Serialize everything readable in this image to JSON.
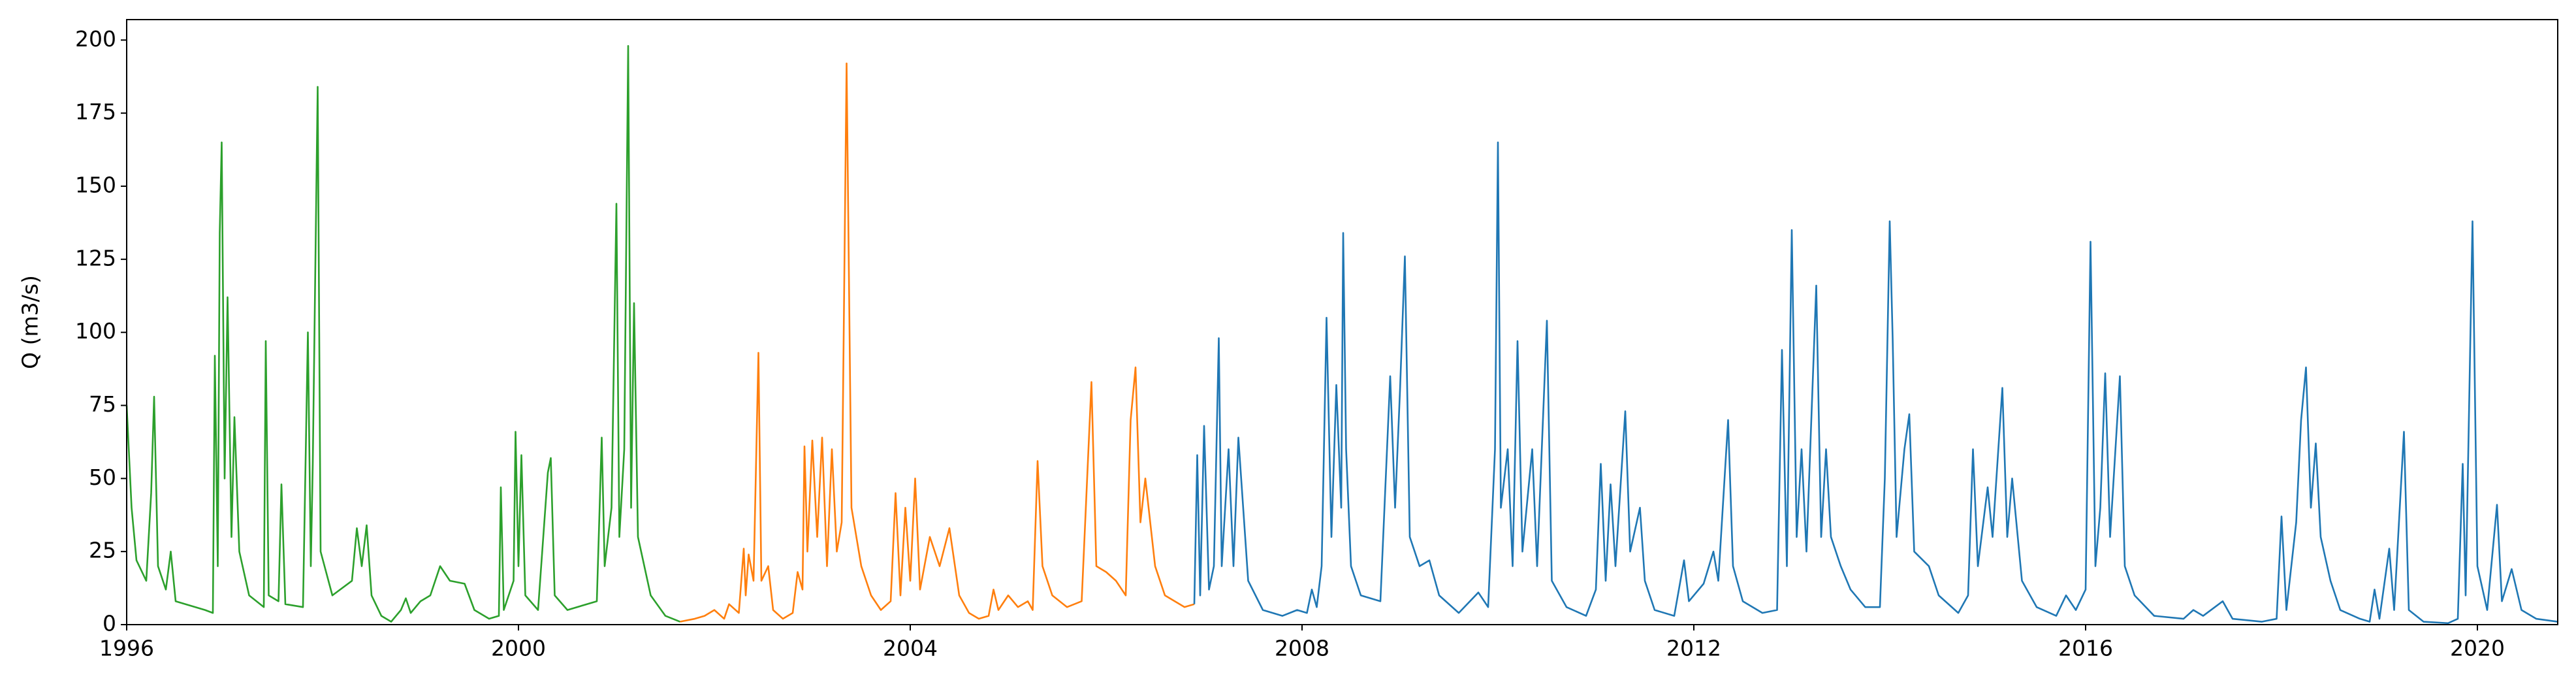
{
  "chart_data": {
    "type": "line",
    "y_label": "Q (m3/s)",
    "xlim": [
      1996,
      2020.82
    ],
    "xticks": [
      1996,
      2000,
      2004,
      2008,
      2012,
      2016,
      2020
    ],
    "ylim": [
      0,
      207
    ],
    "yticks": [
      0,
      25,
      50,
      75,
      100,
      125,
      150,
      175,
      200
    ],
    "grid": false,
    "series": [
      {
        "color": "#2ca02c",
        "x": [
          1996.0,
          1996.05,
          1996.1,
          1996.2,
          1996.25,
          1996.28,
          1996.32,
          1996.4,
          1996.45,
          1996.5,
          1996.8,
          1996.88,
          1996.9,
          1996.93,
          1996.95,
          1996.97,
          1997.0,
          1997.03,
          1997.07,
          1997.1,
          1997.15,
          1997.25,
          1997.4,
          1997.42,
          1997.45,
          1997.55,
          1997.58,
          1997.62,
          1997.8,
          1997.85,
          1997.88,
          1997.9,
          1997.95,
          1997.98,
          1998.1,
          1998.3,
          1998.35,
          1998.4,
          1998.45,
          1998.5,
          1998.6,
          1998.7,
          1998.8,
          1998.85,
          1998.9,
          1999.0,
          1999.1,
          1999.2,
          1999.3,
          1999.45,
          1999.55,
          1999.7,
          1999.8,
          1999.82,
          1999.85,
          1999.95,
          1999.97,
          2000.0,
          2000.03,
          2000.07,
          2000.2,
          2000.3,
          2000.33,
          2000.37,
          2000.5,
          2000.8,
          2000.85,
          2000.88,
          2000.95,
          2001.0,
          2001.03,
          2001.08,
          2001.12,
          2001.15,
          2001.18,
          2001.22,
          2001.35,
          2001.5,
          2001.65
        ],
        "values": [
          75,
          40,
          22,
          15,
          45,
          78,
          20,
          12,
          25,
          8,
          5,
          4,
          92,
          20,
          134,
          165,
          50,
          112,
          30,
          71,
          25,
          10,
          6,
          97,
          10,
          8,
          48,
          7,
          6,
          100,
          20,
          55,
          184,
          25,
          10,
          15,
          33,
          20,
          34,
          10,
          3,
          1,
          5,
          9,
          4,
          8,
          10,
          20,
          15,
          14,
          5,
          2,
          3,
          47,
          5,
          15,
          66,
          20,
          58,
          10,
          5,
          52,
          57,
          10,
          5,
          8,
          64,
          20,
          40,
          144,
          30,
          60,
          198,
          40,
          110,
          30,
          10,
          3,
          1
        ]
      },
      {
        "color": "#ff7f0e",
        "x": [
          2001.65,
          2001.8,
          2001.9,
          2002.0,
          2002.1,
          2002.15,
          2002.25,
          2002.3,
          2002.32,
          2002.35,
          2002.4,
          2002.45,
          2002.48,
          2002.55,
          2002.6,
          2002.7,
          2002.8,
          2002.85,
          2002.9,
          2002.92,
          2002.95,
          2003.0,
          2003.05,
          2003.1,
          2003.15,
          2003.2,
          2003.25,
          2003.3,
          2003.35,
          2003.4,
          2003.5,
          2003.6,
          2003.7,
          2003.8,
          2003.85,
          2003.9,
          2003.95,
          2004.0,
          2004.05,
          2004.1,
          2004.2,
          2004.3,
          2004.4,
          2004.5,
          2004.6,
          2004.7,
          2004.8,
          2004.85,
          2004.9,
          2005.0,
          2005.1,
          2005.2,
          2005.25,
          2005.3,
          2005.35,
          2005.45,
          2005.6,
          2005.75,
          2005.85,
          2005.9,
          2006.0,
          2006.1,
          2006.2,
          2006.25,
          2006.3,
          2006.35,
          2006.4,
          2006.5,
          2006.6,
          2006.8,
          2006.9
        ],
        "values": [
          1,
          2,
          3,
          5,
          2,
          7,
          4,
          26,
          10,
          24,
          15,
          93,
          15,
          20,
          5,
          2,
          4,
          18,
          12,
          61,
          25,
          63,
          30,
          64,
          20,
          60,
          25,
          35,
          192,
          40,
          20,
          10,
          5,
          8,
          45,
          10,
          40,
          15,
          50,
          12,
          30,
          20,
          33,
          10,
          4,
          2,
          3,
          12,
          5,
          10,
          6,
          8,
          5,
          56,
          20,
          10,
          6,
          8,
          83,
          20,
          18,
          15,
          10,
          70,
          88,
          35,
          50,
          20,
          10,
          6,
          7
        ]
      },
      {
        "color": "#1f77b4",
        "x": [
          2006.9,
          2006.93,
          2006.96,
          2007.0,
          2007.05,
          2007.1,
          2007.15,
          2007.18,
          2007.25,
          2007.3,
          2007.35,
          2007.45,
          2007.6,
          2007.8,
          2007.95,
          2008.05,
          2008.1,
          2008.15,
          2008.2,
          2008.25,
          2008.3,
          2008.35,
          2008.4,
          2008.42,
          2008.45,
          2008.5,
          2008.6,
          2008.8,
          2008.9,
          2008.95,
          2009.0,
          2009.05,
          2009.1,
          2009.2,
          2009.3,
          2009.4,
          2009.6,
          2009.8,
          2009.9,
          2009.97,
          2010.0,
          2010.03,
          2010.1,
          2010.15,
          2010.2,
          2010.25,
          2010.35,
          2010.4,
          2010.5,
          2010.55,
          2010.7,
          2010.9,
          2011.0,
          2011.05,
          2011.1,
          2011.15,
          2011.2,
          2011.3,
          2011.35,
          2011.45,
          2011.5,
          2011.6,
          2011.8,
          2011.9,
          2011.95,
          2012.1,
          2012.2,
          2012.25,
          2012.35,
          2012.4,
          2012.5,
          2012.7,
          2012.85,
          2012.9,
          2012.95,
          2013.0,
          2013.05,
          2013.1,
          2013.15,
          2013.25,
          2013.3,
          2013.35,
          2013.4,
          2013.5,
          2013.6,
          2013.75,
          2013.9,
          2013.95,
          2014.0,
          2014.03,
          2014.07,
          2014.15,
          2014.2,
          2014.25,
          2014.4,
          2014.5,
          2014.7,
          2014.8,
          2014.85,
          2014.9,
          2015.0,
          2015.05,
          2015.15,
          2015.2,
          2015.25,
          2015.35,
          2015.5,
          2015.7,
          2015.8,
          2015.9,
          2016.0,
          2016.05,
          2016.1,
          2016.15,
          2016.2,
          2016.25,
          2016.35,
          2016.4,
          2016.5,
          2016.7,
          2017.0,
          2017.1,
          2017.2,
          2017.4,
          2017.5,
          2017.8,
          2017.95,
          2018.0,
          2018.05,
          2018.15,
          2018.2,
          2018.25,
          2018.3,
          2018.35,
          2018.4,
          2018.5,
          2018.6,
          2018.8,
          2018.9,
          2018.95,
          2019.0,
          2019.1,
          2019.15,
          2019.25,
          2019.3,
          2019.45,
          2019.7,
          2019.8,
          2019.85,
          2019.88,
          2019.95,
          2020.0,
          2020.1,
          2020.2,
          2020.25,
          2020.35,
          2020.45,
          2020.6,
          2020.82
        ],
        "values": [
          7,
          58,
          10,
          68,
          12,
          20,
          98,
          20,
          60,
          20,
          64,
          15,
          5,
          3,
          5,
          4,
          12,
          6,
          20,
          105,
          30,
          82,
          40,
          134,
          60,
          20,
          10,
          8,
          85,
          40,
          80,
          126,
          30,
          20,
          22,
          10,
          4,
          11,
          6,
          60,
          165,
          40,
          60,
          20,
          97,
          25,
          60,
          20,
          104,
          15,
          6,
          3,
          12,
          55,
          15,
          48,
          20,
          73,
          25,
          40,
          15,
          5,
          3,
          22,
          8,
          14,
          25,
          15,
          70,
          20,
          8,
          4,
          5,
          94,
          20,
          135,
          30,
          60,
          25,
          116,
          30,
          60,
          30,
          20,
          12,
          6,
          6,
          50,
          138,
          98,
          30,
          60,
          72,
          25,
          20,
          10,
          4,
          10,
          60,
          20,
          47,
          30,
          81,
          30,
          50,
          15,
          6,
          3,
          10,
          5,
          12,
          131,
          20,
          40,
          86,
          30,
          85,
          20,
          10,
          3,
          2,
          5,
          3,
          8,
          2,
          1,
          2,
          37,
          5,
          35,
          70,
          88,
          40,
          62,
          30,
          15,
          5,
          2,
          1,
          12,
          2,
          26,
          5,
          66,
          5,
          1,
          0.5,
          2,
          55,
          10,
          138,
          20,
          5,
          41,
          8,
          19,
          5,
          2,
          1
        ]
      }
    ]
  }
}
